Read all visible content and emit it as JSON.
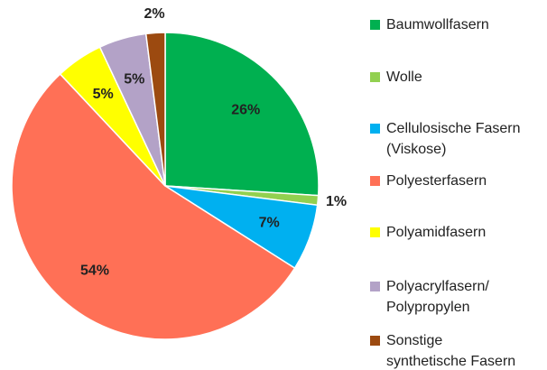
{
  "chart_data": {
    "type": "pie",
    "categories": [
      "Baumwollfasern",
      "Wolle",
      "Cellulosische Fasern\n(Viskose)",
      "Polyesterfasern",
      "Polyamidfasern",
      "Polyacrylfasern/\nPolypropylen",
      "Sonstige\nsynthetische Fasern"
    ],
    "values": [
      26,
      1,
      7,
      54,
      5,
      5,
      2
    ],
    "value_labels": [
      "26%",
      "1%",
      "7%",
      "54%",
      "5%",
      "5%",
      "2%"
    ],
    "colors": [
      "#00b050",
      "#92d050",
      "#00b0f0",
      "#ff7056",
      "#ffff00",
      "#b3a2c7",
      "#9c4a10"
    ],
    "legend": "right"
  }
}
